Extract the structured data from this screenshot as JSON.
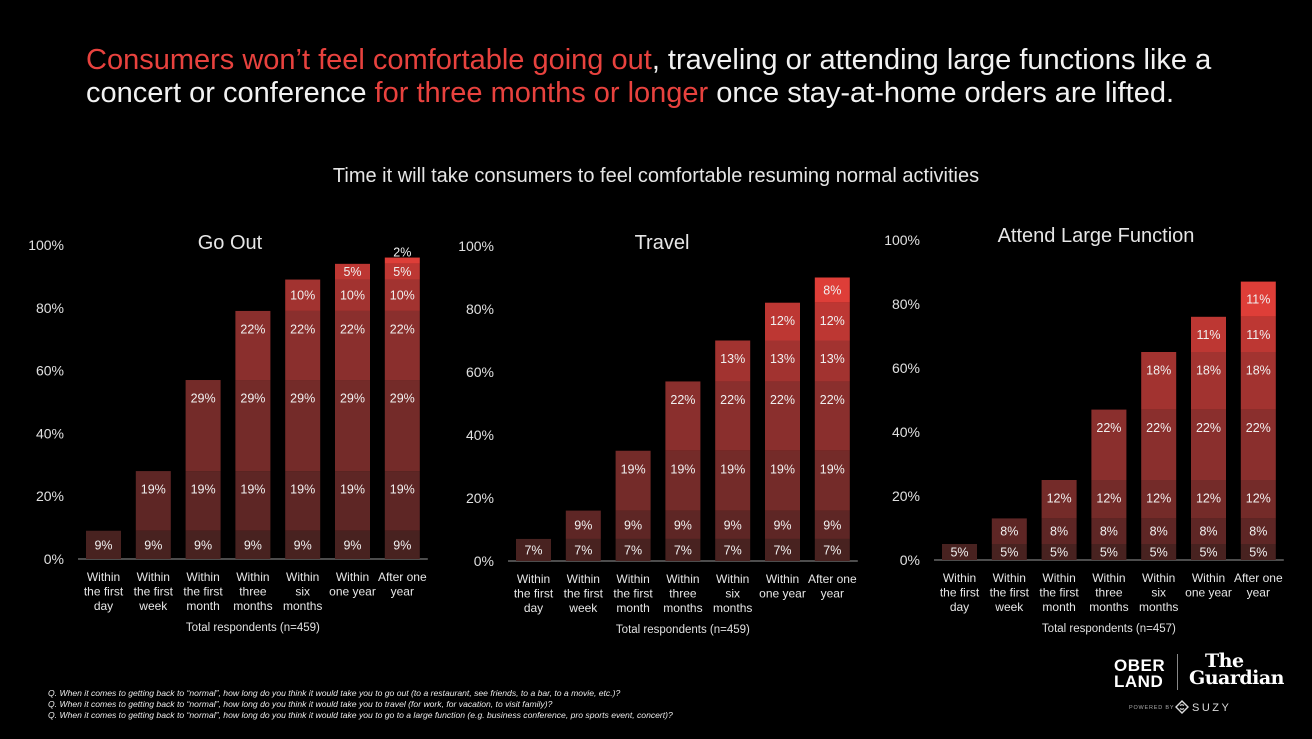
{
  "headline": {
    "part1": "Consumers won’t feel comfortable going out",
    "part2": ", traveling or attending large functions like a concert or conference ",
    "part3": "for three months or longer",
    "part4": " once stay-at-home orders are lifted."
  },
  "colors": {
    "highlight": "#e8423e",
    "segments": [
      "#482220",
      "#5e2625",
      "#742b29",
      "#8a2f2d",
      "#a23330",
      "#bd3733",
      "#de3e38"
    ]
  },
  "chart_data": [
    {
      "type": "bar",
      "stacked": true,
      "title": "Go Out",
      "note": "Total respondents (n=459)",
      "categories": [
        "Within the first day",
        "Within the first week",
        "Within the first month",
        "Within three months",
        "Within six months",
        "Within one year",
        "After one year"
      ],
      "category_lines": [
        [
          "Within",
          "the first",
          "day"
        ],
        [
          "Within",
          "the first",
          "week"
        ],
        [
          "Within",
          "the first",
          "month"
        ],
        [
          "Within",
          "three",
          "months"
        ],
        [
          "Within",
          "six",
          "months"
        ],
        [
          "Within",
          "one year"
        ],
        [
          "After one",
          "year"
        ]
      ],
      "yticks": [
        "0%",
        "20%",
        "40%",
        "60%",
        "80%",
        "100%"
      ],
      "ylim": [
        0,
        100
      ],
      "series": [
        {
          "values": [
            9,
            9,
            9,
            9,
            9,
            9,
            9
          ]
        },
        {
          "values": [
            null,
            19,
            19,
            19,
            19,
            19,
            19
          ]
        },
        {
          "values": [
            null,
            null,
            29,
            29,
            29,
            29,
            29
          ]
        },
        {
          "values": [
            null,
            null,
            null,
            22,
            22,
            22,
            22
          ]
        },
        {
          "values": [
            null,
            null,
            null,
            null,
            10,
            10,
            10
          ]
        },
        {
          "values": [
            null,
            null,
            null,
            null,
            null,
            5,
            5
          ]
        },
        {
          "values": [
            null,
            null,
            null,
            null,
            null,
            null,
            2
          ]
        }
      ]
    },
    {
      "type": "bar",
      "stacked": true,
      "title": "Travel",
      "note": "Total respondents (n=459)",
      "categories": [
        "Within the first day",
        "Within the first week",
        "Within the first month",
        "Within three months",
        "Within six months",
        "Within one year",
        "After one year"
      ],
      "category_lines": [
        [
          "Within",
          "the first",
          "day"
        ],
        [
          "Within",
          "the first",
          "week"
        ],
        [
          "Within",
          "the first",
          "month"
        ],
        [
          "Within",
          "three",
          "months"
        ],
        [
          "Within",
          "six",
          "months"
        ],
        [
          "Within",
          "one year"
        ],
        [
          "After one",
          "year"
        ]
      ],
      "yticks": [
        "0%",
        "20%",
        "40%",
        "60%",
        "80%",
        "100%"
      ],
      "ylim": [
        0,
        100
      ],
      "series": [
        {
          "values": [
            7,
            7,
            7,
            7,
            7,
            7,
            7
          ]
        },
        {
          "values": [
            null,
            9,
            9,
            9,
            9,
            9,
            9
          ]
        },
        {
          "values": [
            null,
            null,
            19,
            19,
            19,
            19,
            19
          ]
        },
        {
          "values": [
            null,
            null,
            null,
            22,
            22,
            22,
            22
          ]
        },
        {
          "values": [
            null,
            null,
            null,
            null,
            13,
            13,
            13
          ]
        },
        {
          "values": [
            null,
            null,
            null,
            null,
            null,
            12,
            12
          ]
        },
        {
          "values": [
            null,
            null,
            null,
            null,
            null,
            null,
            8
          ]
        }
      ]
    },
    {
      "type": "bar",
      "stacked": true,
      "title": "Attend Large Function",
      "note": "Total respondents (n=457)",
      "categories": [
        "Within the first day",
        "Within the first week",
        "Within the first month",
        "Within three months",
        "Within six months",
        "Within one year",
        "After one year"
      ],
      "category_lines": [
        [
          "Within",
          "the first",
          "day"
        ],
        [
          "Within",
          "the first",
          "week"
        ],
        [
          "Within",
          "the first",
          "month"
        ],
        [
          "Within",
          "three",
          "months"
        ],
        [
          "Within",
          "six",
          "months"
        ],
        [
          "Within",
          "one year"
        ],
        [
          "After one",
          "year"
        ]
      ],
      "yticks": [
        "0%",
        "20%",
        "40%",
        "60%",
        "80%",
        "100%"
      ],
      "ylim": [
        0,
        100
      ],
      "series": [
        {
          "values": [
            5,
            5,
            5,
            5,
            5,
            5,
            5
          ]
        },
        {
          "values": [
            null,
            8,
            8,
            8,
            8,
            8,
            8
          ]
        },
        {
          "values": [
            null,
            null,
            12,
            12,
            12,
            12,
            12
          ]
        },
        {
          "values": [
            null,
            null,
            null,
            22,
            22,
            22,
            22
          ]
        },
        {
          "values": [
            null,
            null,
            null,
            null,
            18,
            18,
            18
          ]
        },
        {
          "values": [
            null,
            null,
            null,
            null,
            null,
            11,
            11
          ]
        },
        {
          "values": [
            null,
            null,
            null,
            null,
            null,
            null,
            11
          ]
        }
      ]
    }
  ],
  "subtitle": "Time it will take consumers to feel comfortable resuming normal activities",
  "footnotes": [
    "Q. When it comes to getting back to “normal”, how long do you think it would take you to go out (to a restaurant, see friends, to a bar, to a movie, etc.)?",
    "Q. When it comes to getting back to “normal”, how long do you think it would take you to travel (for work, for vacation, to visit family)?",
    "Q. When it comes to getting back to “normal”, how long do you think it would take you to go to a large function (e.g. business conference, pro sports event, concert)?"
  ],
  "logos": {
    "oberland_line1": "OBER",
    "oberland_line2": "LAND",
    "guardian_line1": "The",
    "guardian_line2": "Guardian",
    "powered_by": "POWERED BY",
    "suzy": "SUZY"
  }
}
